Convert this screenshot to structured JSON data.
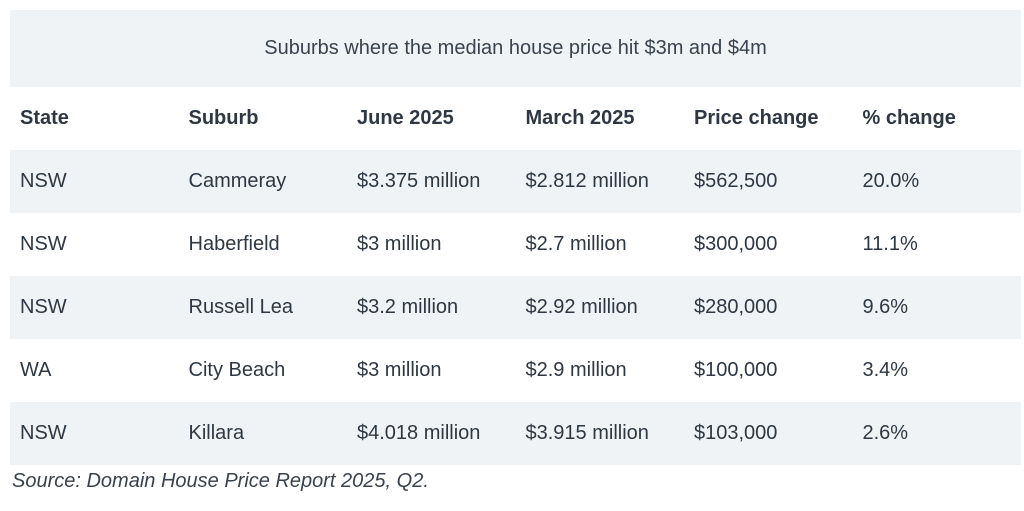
{
  "table": {
    "title": "Suburbs where the median house price hit $3m and $4m",
    "headers": [
      "State",
      "Suburb",
      "June 2025",
      "March 2025",
      "Price change",
      "% change"
    ],
    "rows": [
      [
        "NSW",
        "Cammeray",
        "$3.375 million",
        "$2.812 million",
        "$562,500",
        "20.0%"
      ],
      [
        "NSW",
        "Haberfield",
        "$3 million",
        "$2.7 million",
        "$300,000",
        "11.1%"
      ],
      [
        "NSW",
        "Russell Lea",
        "$3.2 million",
        "$2.92 million",
        "$280,000",
        "9.6%"
      ],
      [
        "WA",
        "City Beach",
        "$3 million",
        "$2.9 million",
        "$100,000",
        "3.4%"
      ],
      [
        "NSW",
        "Killara",
        "$4.018 million",
        "$3.915 million",
        "$103,000",
        "2.6%"
      ]
    ],
    "source": "Source: Domain House Price Report 2025, Q2."
  }
}
